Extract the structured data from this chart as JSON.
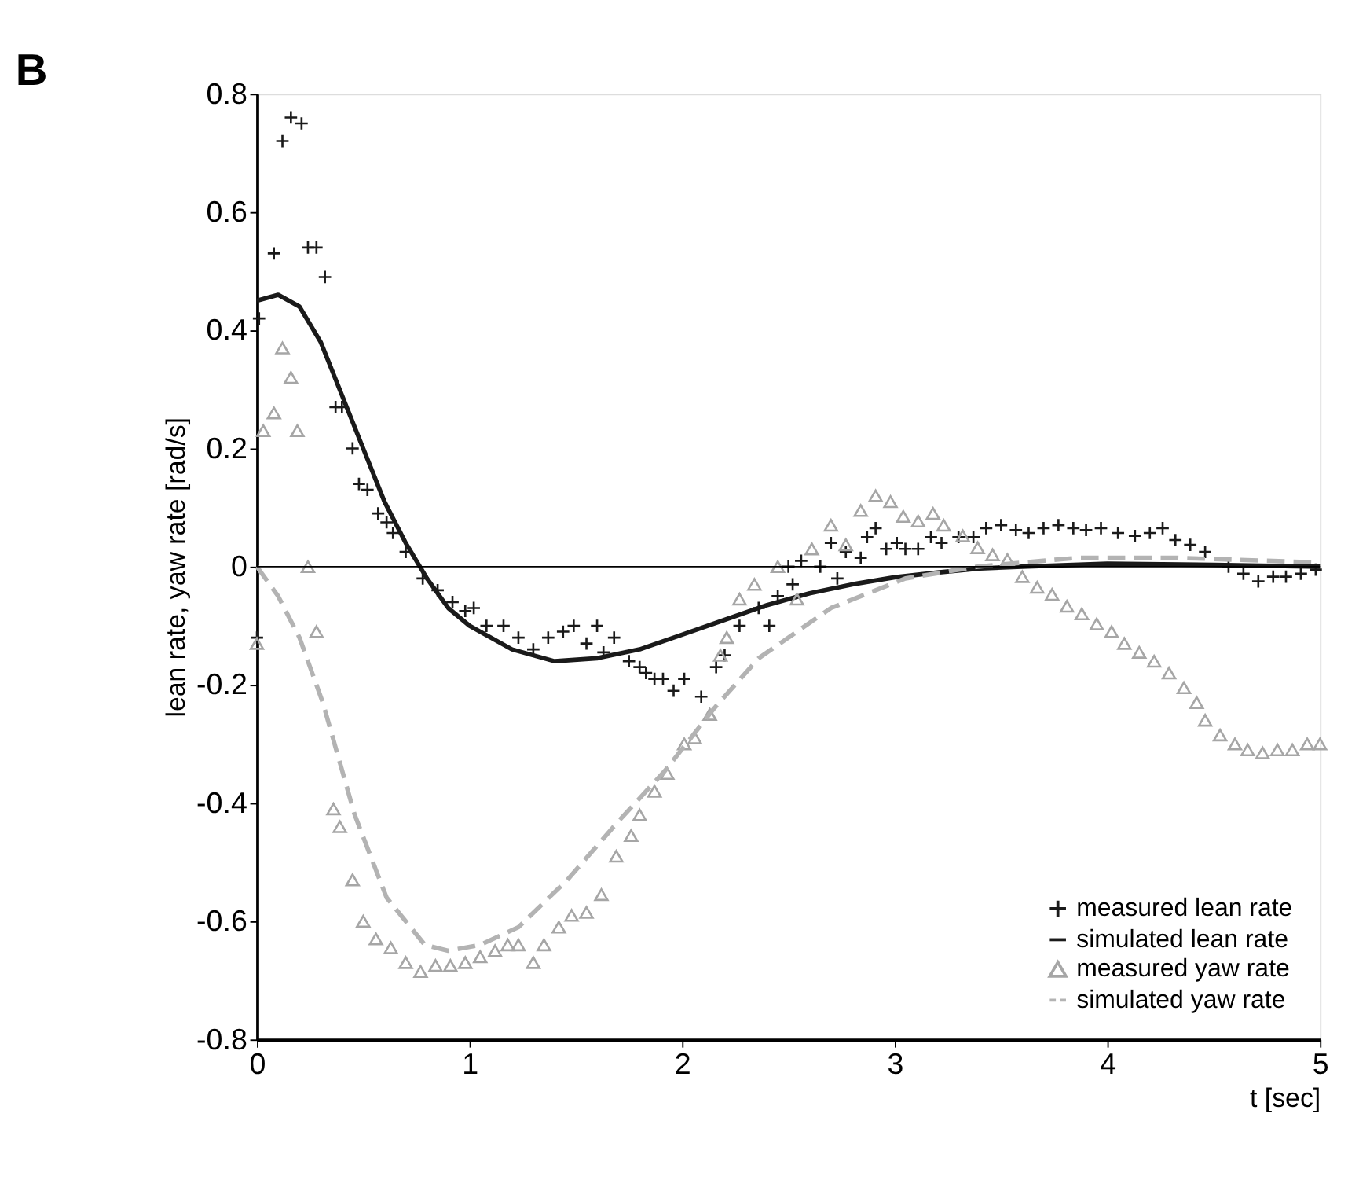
{
  "chart_data": {
    "type": "scatter",
    "title": "B",
    "xlabel": "t [sec]",
    "ylabel": "lean rate, yaw rate  [rad/s]",
    "xlim": [
      0,
      5
    ],
    "xticks": [
      0,
      1,
      2,
      3,
      4,
      5
    ],
    "ylim": [
      -0.8,
      0.8
    ],
    "yticks": [
      -0.8,
      -0.6,
      -0.4,
      -0.2,
      0,
      0.2,
      0.4,
      0.6,
      0.8
    ],
    "grid": false,
    "legend": "bottom right",
    "ref_lines": [
      {
        "axis": "y",
        "value": 0,
        "color": "#000000",
        "line_style": "solid"
      }
    ],
    "series": [
      {
        "name": "measured lean rate",
        "type": "scatter",
        "marker": "cross",
        "color": "#1a1a1a",
        "x": [
          0,
          0.01,
          0.08,
          0.12,
          0.16,
          0.21,
          0.24,
          0.28,
          0.32,
          0.37,
          0.4,
          0.45,
          0.48,
          0.52,
          0.57,
          0.61,
          0.64,
          0.7,
          0.78,
          0.85,
          0.92,
          0.98,
          1.02,
          1.08,
          1.16,
          1.23,
          1.3,
          1.37,
          1.44,
          1.49,
          1.55,
          1.6,
          1.63,
          1.68,
          1.75,
          1.8,
          1.83,
          1.87,
          1.91,
          1.96,
          2.01,
          2.09,
          2.16,
          2.2,
          2.27,
          2.36,
          2.41,
          2.45,
          2.5,
          2.52,
          2.56,
          2.65,
          2.7,
          2.73,
          2.77,
          2.84,
          2.87,
          2.91,
          2.96,
          3.01,
          3.05,
          3.11,
          3.17,
          3.22,
          3.3,
          3.37,
          3.43,
          3.5,
          3.57,
          3.63,
          3.7,
          3.77,
          3.84,
          3.9,
          3.97,
          4.05,
          4.13,
          4.2,
          4.26,
          4.32,
          4.39,
          4.46,
          4.57,
          4.64,
          4.71,
          4.78,
          4.84,
          4.91,
          4.98
        ],
        "values": [
          -0.12,
          0.42,
          0.53,
          0.72,
          0.76,
          0.75,
          0.54,
          0.54,
          0.49,
          0.27,
          0.27,
          0.2,
          0.14,
          0.13,
          0.09,
          0.075,
          0.057,
          0.025,
          -0.02,
          -0.04,
          -0.06,
          -0.075,
          -0.07,
          -0.1,
          -0.1,
          -0.12,
          -0.14,
          -0.12,
          -0.11,
          -0.1,
          -0.13,
          -0.1,
          -0.145,
          -0.12,
          -0.16,
          -0.17,
          -0.18,
          -0.19,
          -0.19,
          -0.21,
          -0.19,
          -0.22,
          -0.17,
          -0.15,
          -0.1,
          -0.07,
          -0.1,
          -0.05,
          0,
          -0.03,
          0.01,
          0,
          0.04,
          -0.02,
          0.025,
          0.015,
          0.05,
          0.065,
          0.03,
          0.04,
          0.03,
          0.03,
          0.05,
          0.04,
          0.05,
          0.05,
          0.065,
          0.07,
          0.062,
          0.057,
          0.065,
          0.07,
          0.065,
          0.062,
          0.065,
          0.057,
          0.052,
          0.057,
          0.065,
          0.045,
          0.037,
          0.025,
          0,
          -0.012,
          -0.025,
          -0.017,
          -0.017,
          -0.012,
          -0.005
        ]
      },
      {
        "name": "simulated lean rate",
        "type": "line",
        "line_style": "solid",
        "color": "#1a1a1a",
        "x": [
          0,
          0.1,
          0.2,
          0.3,
          0.4,
          0.5,
          0.6,
          0.7,
          0.8,
          0.9,
          1.0,
          1.2,
          1.4,
          1.6,
          1.8,
          2.0,
          2.2,
          2.4,
          2.6,
          2.8,
          3.0,
          3.2,
          3.4,
          3.6,
          4.0,
          4.5,
          5.0
        ],
        "values": [
          0.45,
          0.46,
          0.44,
          0.38,
          0.29,
          0.2,
          0.11,
          0.04,
          -0.02,
          -0.07,
          -0.1,
          -0.14,
          -0.16,
          -0.155,
          -0.14,
          -0.115,
          -0.09,
          -0.065,
          -0.045,
          -0.03,
          -0.018,
          -0.01,
          -0.003,
          0,
          0.005,
          0.003,
          0
        ]
      },
      {
        "name": "measured yaw rate",
        "type": "scatter",
        "marker": "triangle",
        "color": "#a6a6a6",
        "x": [
          0,
          0.03,
          0.08,
          0.12,
          0.16,
          0.19,
          0.24,
          0.28,
          0.36,
          0.39,
          0.45,
          0.5,
          0.56,
          0.63,
          0.7,
          0.77,
          0.84,
          0.91,
          0.98,
          1.05,
          1.12,
          1.18,
          1.23,
          1.3,
          1.35,
          1.42,
          1.48,
          1.55,
          1.62,
          1.69,
          1.76,
          1.8,
          1.87,
          1.93,
          2.01,
          2.06,
          2.13,
          2.18,
          2.21,
          2.27,
          2.34,
          2.45,
          2.54,
          2.61,
          2.7,
          2.77,
          2.84,
          2.91,
          2.98,
          3.04,
          3.11,
          3.18,
          3.23,
          3.32,
          3.39,
          3.46,
          3.53,
          3.6,
          3.67,
          3.74,
          3.81,
          3.88,
          3.95,
          4.02,
          4.08,
          4.15,
          4.22,
          4.29,
          4.36,
          4.42,
          4.46,
          4.53,
          4.6,
          4.66,
          4.73,
          4.8,
          4.87,
          4.94,
          5.0
        ],
        "values": [
          -0.13,
          0.23,
          0.26,
          0.37,
          0.32,
          0.23,
          0,
          -0.11,
          -0.41,
          -0.44,
          -0.53,
          -0.6,
          -0.63,
          -0.645,
          -0.67,
          -0.685,
          -0.675,
          -0.675,
          -0.67,
          -0.66,
          -0.65,
          -0.64,
          -0.64,
          -0.67,
          -0.64,
          -0.61,
          -0.59,
          -0.585,
          -0.555,
          -0.49,
          -0.455,
          -0.42,
          -0.38,
          -0.35,
          -0.3,
          -0.29,
          -0.25,
          -0.15,
          -0.12,
          -0.055,
          -0.03,
          0,
          -0.055,
          0.03,
          0.07,
          0.037,
          0.095,
          0.12,
          0.11,
          0.085,
          0.077,
          0.09,
          0.07,
          0.052,
          0.032,
          0.02,
          0.012,
          -0.017,
          -0.035,
          -0.047,
          -0.067,
          -0.08,
          -0.097,
          -0.11,
          -0.13,
          -0.145,
          -0.16,
          -0.18,
          -0.205,
          -0.23,
          -0.26,
          -0.285,
          -0.3,
          -0.31,
          -0.315,
          -0.31,
          -0.31,
          -0.3,
          -0.3
        ]
      },
      {
        "name": "simulated yaw rate",
        "type": "line",
        "line_style": "dashed",
        "color": "#b3b3b3",
        "x": [
          0,
          0.1,
          0.2,
          0.31,
          0.46,
          0.61,
          0.79,
          0.9,
          1.05,
          1.23,
          1.46,
          1.69,
          1.92,
          2.15,
          2.36,
          2.7,
          3.05,
          3.39,
          3.86,
          4.32,
          5.0
        ],
        "values": [
          0,
          -0.05,
          -0.12,
          -0.23,
          -0.42,
          -0.56,
          -0.64,
          -0.65,
          -0.64,
          -0.61,
          -0.53,
          -0.435,
          -0.345,
          -0.24,
          -0.155,
          -0.07,
          -0.02,
          0,
          0.015,
          0.015,
          0.007
        ]
      }
    ]
  }
}
